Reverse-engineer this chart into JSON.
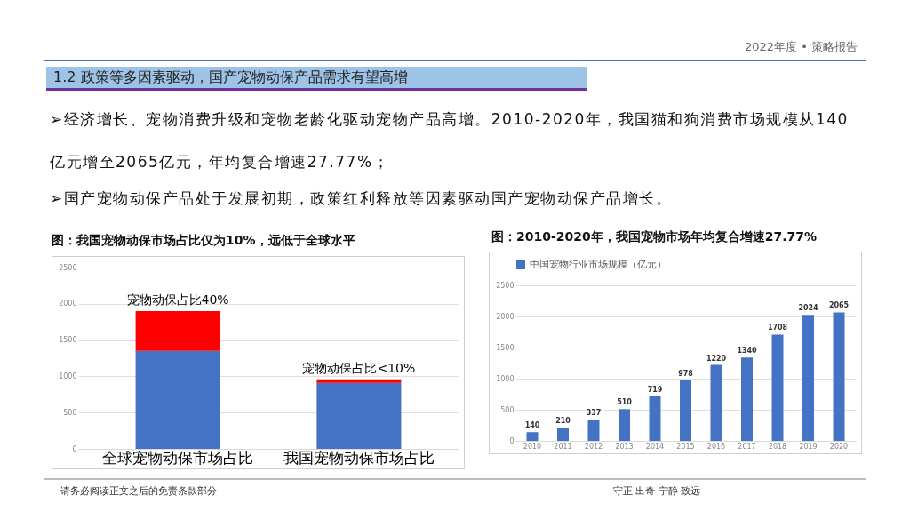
{
  "chart_data": [
    {
      "type": "bar",
      "title": "图：我国宠物动保市场占比仅为10%，远低于全球水平",
      "categories": [
        "全球宠物动保市场占比",
        "我国宠物动保市场占比"
      ],
      "stacked": true,
      "series": [
        {
          "color": "#4472c4",
          "values": [
            1350,
            910
          ]
        },
        {
          "color": "#ff0000",
          "values": [
            550,
            50
          ]
        }
      ],
      "ylim": [
        0,
        2500
      ],
      "yticks": [
        0,
        500,
        1000,
        1500,
        2000,
        2500
      ],
      "grid": "y",
      "legend": false,
      "annotations": [
        "2022年度 • 策略报告",
        "1.2 政策等多因素驱动，国产宠物动保产品需求有望高增",
        "➢经济增长、宠物消费升级和宠物老龄化驱动宠物产品高增。2010-2020年，我国猫和狗消费市场规模从140亿元增至2065亿元，年均复合增速27.77%；",
        "➢国产宠物动保产品处于发展初期，政策红利释放等因素驱动国产宠物动保产品增长。",
        "请务必阅读正文之后的免责条款部分",
        "守正 出奇 宁静 致远",
        {
          "text": "宠物动保占比40%",
          "x": "全球宠物动保市场占比",
          "y": 1900
        },
        {
          "text": "宠物动保占比<10%",
          "x": "我国宠物动保市场占比",
          "y": 960
        }
      ]
    },
    {
      "type": "bar",
      "title": "图：2010-2020年，我国宠物市场年均复合增速27.77%",
      "categories": [
        "2010",
        "2011",
        "2012",
        "2013",
        "2014",
        "2015",
        "2016",
        "2017",
        "2018",
        "2019",
        "2020"
      ],
      "series": [
        {
          "name": "中国宠物行业市场规模（亿元）",
          "color": "#4472c4",
          "values": [
            140,
            210,
            337,
            510,
            719,
            978,
            1220,
            1340,
            1708,
            2024,
            2065
          ]
        }
      ],
      "ylim": [
        0,
        2500
      ],
      "yticks": [
        0,
        500,
        1000,
        1500,
        2000,
        2500
      ],
      "grid": "y",
      "legend": "top",
      "data_labels": true
    }
  ]
}
